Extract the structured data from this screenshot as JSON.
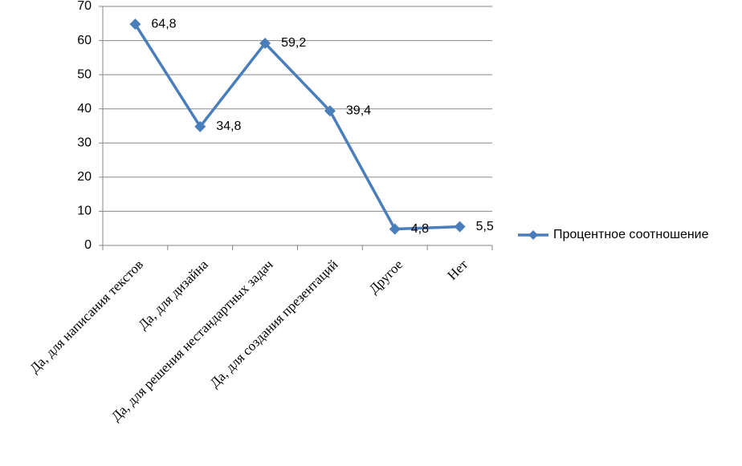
{
  "chart_data": {
    "type": "line",
    "categories": [
      "Да, для написания текстов",
      "Да, для дизайна",
      "Да, для решения нестандартных задач",
      "Да, для создания презентаций",
      "Другое",
      "Нет"
    ],
    "series": [
      {
        "name": "Процентное соотношение",
        "color": "#4a7ebb",
        "values": [
          64.8,
          34.8,
          59.2,
          39.4,
          4.8,
          5.5
        ],
        "value_labels": [
          "64,8",
          "34,8",
          "59,2",
          "39,4",
          "4,8",
          "5,5"
        ]
      }
    ],
    "ylim": [
      0,
      70
    ],
    "yticks": [
      0,
      10,
      20,
      30,
      40,
      50,
      60,
      70
    ],
    "grid": true,
    "legend": "right"
  }
}
